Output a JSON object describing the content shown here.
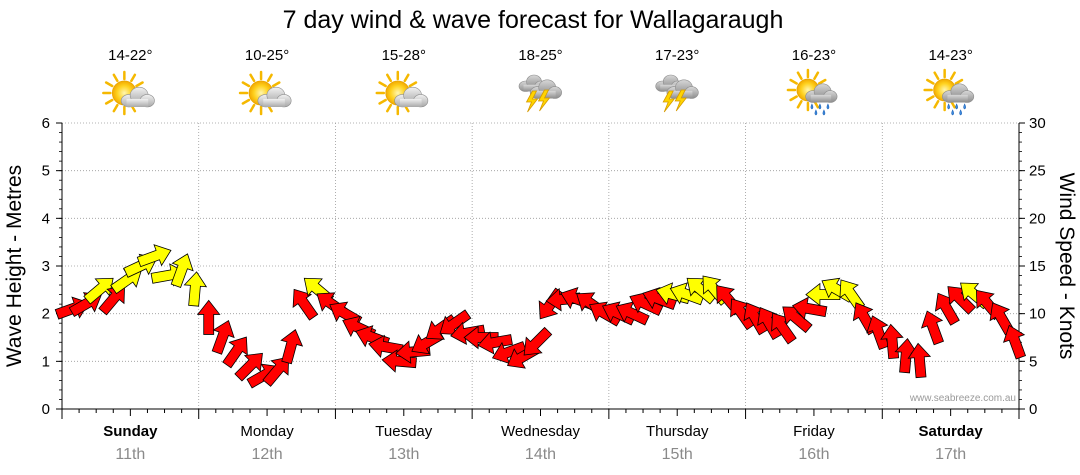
{
  "chart_data": {
    "type": "line",
    "title": "7 day wind & wave forecast for Wallagaraugh",
    "ylabel_left": "Wave Height - Metres",
    "ylabel_right": "Wind Speed - Knots",
    "ylim_left": [
      0,
      6
    ],
    "ylim_right": [
      0,
      30
    ],
    "yticks_left": [
      "0",
      "1",
      "2",
      "3",
      "4",
      "5",
      "6"
    ],
    "yticks_right": [
      "0",
      "5",
      "10",
      "15",
      "20",
      "25",
      "30"
    ],
    "watermark": "www.seabreeze.com.au",
    "days": [
      {
        "name": "Sunday",
        "date": "11th",
        "temp": "14-22°",
        "icon": "partly-cloudy-sun-icon",
        "bold": true
      },
      {
        "name": "Monday",
        "date": "12th",
        "temp": "10-25°",
        "icon": "partly-cloudy-sun-icon",
        "bold": false
      },
      {
        "name": "Tuesday",
        "date": "13th",
        "temp": "15-28°",
        "icon": "partly-cloudy-sun-icon",
        "bold": false
      },
      {
        "name": "Wednesday",
        "date": "14th",
        "temp": "18-25°",
        "icon": "thunderstorm-icon",
        "bold": false
      },
      {
        "name": "Thursday",
        "date": "15th",
        "temp": "17-23°",
        "icon": "thunderstorm-icon",
        "bold": false
      },
      {
        "name": "Friday",
        "date": "16th",
        "temp": "16-23°",
        "icon": "sun-cloud-rain-icon",
        "bold": false
      },
      {
        "name": "Saturday",
        "date": "17th",
        "temp": "14-23°",
        "icon": "sun-cloud-rain-icon",
        "bold": true
      }
    ],
    "series": [
      {
        "name": "Wind speed (knots)",
        "time_days": [
          0.0,
          0.1,
          0.2,
          0.3,
          0.4,
          0.5,
          0.6,
          0.7,
          0.8,
          0.9,
          1.0,
          1.1,
          1.2,
          1.3,
          1.4,
          1.5,
          1.6,
          1.7,
          1.8,
          1.9,
          2.0,
          2.1,
          2.2,
          2.3,
          2.4,
          2.5,
          2.6,
          2.7,
          2.8,
          2.9,
          3.0,
          3.1,
          3.2,
          3.3,
          3.4,
          3.5,
          3.6,
          3.7,
          3.8,
          3.9,
          4.0,
          4.1,
          4.2,
          4.3,
          4.4,
          4.5,
          4.6,
          4.7,
          4.8,
          4.9,
          5.0,
          5.1,
          5.2,
          5.3,
          5.4,
          5.5,
          5.6,
          5.7,
          5.8,
          5.9,
          6.0,
          6.1,
          6.2,
          6.3,
          6.4,
          6.5,
          6.6,
          6.7,
          6.8,
          6.9
        ],
        "knots": [
          10.5,
          11.0,
          12.5,
          11.5,
          13.5,
          15.0,
          16.0,
          14.0,
          14.5,
          12.5,
          9.5,
          7.5,
          6.0,
          4.5,
          3.5,
          4.0,
          6.5,
          11.0,
          12.5,
          11.0,
          10.0,
          8.5,
          7.5,
          6.5,
          5.0,
          6.0,
          7.0,
          8.5,
          9.0,
          8.0,
          7.5,
          7.0,
          6.0,
          5.5,
          7.0,
          11.0,
          11.5,
          11.5,
          11.0,
          10.0,
          10.0,
          10.0,
          11.0,
          11.5,
          12.0,
          12.0,
          12.5,
          12.5,
          11.5,
          10.0,
          9.5,
          9.0,
          8.5,
          9.5,
          10.5,
          12.0,
          12.5,
          12.0,
          9.5,
          8.0,
          7.0,
          5.5,
          5.0,
          8.5,
          10.5,
          11.5,
          12.0,
          11.0,
          9.5,
          7.0
        ],
        "direction_deg": [
          250,
          240,
          230,
          220,
          235,
          245,
          250,
          260,
          200,
          185,
          180,
          200,
          215,
          225,
          240,
          220,
          195,
          145,
          130,
          125,
          120,
          115,
          110,
          100,
          95,
          85,
          60,
          55,
          55,
          80,
          90,
          80,
          70,
          60,
          45,
          35,
          85,
          110,
          125,
          120,
          115,
          115,
          115,
          110,
          105,
          110,
          130,
          140,
          140,
          145,
          150,
          150,
          145,
          130,
          100,
          90,
          120,
          145,
          150,
          160,
          175,
          185,
          175,
          160,
          150,
          135,
          130,
          140,
          150,
          160
        ]
      }
    ]
  }
}
